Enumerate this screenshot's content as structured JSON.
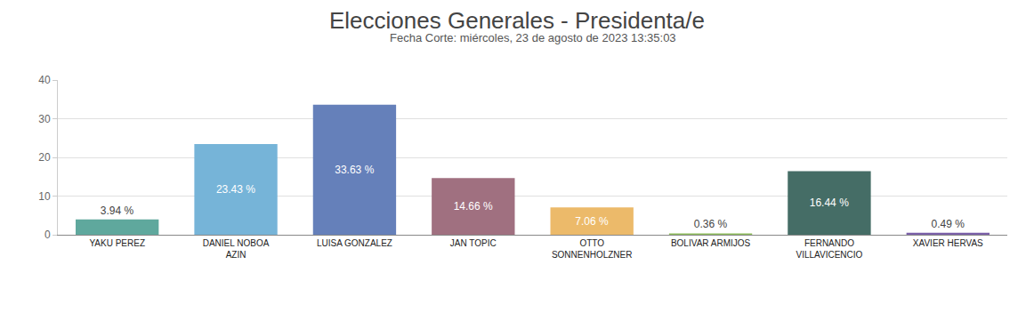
{
  "chart_data": {
    "type": "bar",
    "title": "Elecciones Generales - Presidenta/e",
    "subtitle": "Fecha Corte: miércoles, 23 de agosto de 2023 13:35:03",
    "categories": [
      "YAKU PEREZ",
      "DANIEL NOBOA AZIN",
      "LUISA GONZALEZ",
      "JAN TOPIC",
      "OTTO SONNENHOLZNER",
      "BOLIVAR ARMIJOS",
      "FERNANDO VILLAVICENCIO",
      "XAVIER HERVAS"
    ],
    "values": [
      3.94,
      23.43,
      33.63,
      14.66,
      7.06,
      0.36,
      16.44,
      0.49
    ],
    "value_labels": [
      "3.94 %",
      "23.43 %",
      "33.63 %",
      "14.66 %",
      "7.06 %",
      "0.36 %",
      "16.44 %",
      "0.49 %"
    ],
    "colors": [
      "#5fa89d",
      "#76b4d8",
      "#6580ba",
      "#a07080",
      "#ecba6a",
      "#8cbb5a",
      "#456d66",
      "#7a5fa8"
    ],
    "ylim": [
      0,
      40
    ],
    "yticks": [
      0,
      10,
      20,
      30,
      40
    ],
    "grid": true,
    "data_labels": true
  }
}
